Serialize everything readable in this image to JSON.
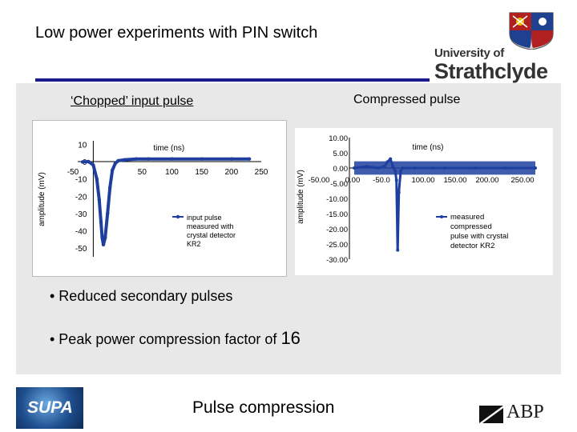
{
  "slide": {
    "title": "Low power experiments with PIN switch",
    "label_left": "‘Chopped’ input pulse",
    "label_right": "Compressed pulse",
    "bullets": [
      "• Reduced secondary pulses",
      "• Peak power compression factor of "
    ],
    "bullet_value": "16",
    "footer_text": "Pulse compression"
  },
  "logos": {
    "university_line1": "University of",
    "university_line2": "Strathclyde",
    "supa": "SUPA",
    "abp": "ABP"
  },
  "colors": {
    "rule": "#1a1a8a",
    "series": "#1f3f9f",
    "content_bg": "#e8e8e8"
  },
  "chart_data": [
    {
      "type": "line",
      "title": "",
      "xlabel": "time (ns)",
      "ylabel": "amplitude (mV)",
      "xlim": [
        -50,
        250
      ],
      "ylim": [
        -55,
        12
      ],
      "x_ticks": [
        -50,
        50,
        100,
        150,
        200,
        250
      ],
      "y_ticks": [
        10,
        0,
        -10,
        -20,
        -30,
        -40,
        -50
      ],
      "legend": "input pulse measured with crystal detector KR2",
      "series": [
        {
          "name": "input pulse measured with crystal detector KR2",
          "x": [
            -50,
            -40,
            -32,
            -26,
            -22,
            -19,
            -17,
            -15,
            -12,
            -8,
            -4,
            0,
            5,
            10,
            20,
            40,
            60,
            100,
            150,
            200,
            230
          ],
          "y": [
            -0.2,
            0,
            -2,
            -10,
            -22,
            -35,
            -44,
            -48,
            -44,
            -30,
            -15,
            -5,
            -1,
            0.5,
            1,
            1.5,
            1.5,
            1.5,
            1.5,
            1.5,
            1.5
          ]
        }
      ]
    },
    {
      "type": "line",
      "title": "",
      "xlabel": "time (ns)",
      "ylabel": "amplitude (mV)",
      "xlim": [
        -50,
        250
      ],
      "ylim": [
        -30,
        10
      ],
      "x_ticks": [
        "-50.00",
        "0.00",
        "-50.0",
        "100.00",
        "150.00",
        "200.00",
        "250.00"
      ],
      "y_ticks": [
        "10.00",
        "5.00",
        "0.00",
        "-5.00",
        "-10.00",
        "-15.00",
        "-20.00",
        "-25.00",
        "-30.00"
      ],
      "legend": "measured compressed pulse with crystal detector KR2",
      "series": [
        {
          "name": "measured compressed pulse with crystal detector KR2",
          "x": [
            -50,
            -30,
            -10,
            0,
            5,
            10,
            14,
            18,
            20,
            22,
            24,
            27,
            30,
            50,
            80,
            100,
            150,
            200,
            250
          ],
          "y": [
            0,
            0.5,
            0,
            0.5,
            2,
            3,
            0.5,
            -1,
            -4,
            -27,
            -8,
            -1,
            0,
            0,
            0,
            0,
            0,
            0,
            0
          ]
        }
      ]
    }
  ]
}
